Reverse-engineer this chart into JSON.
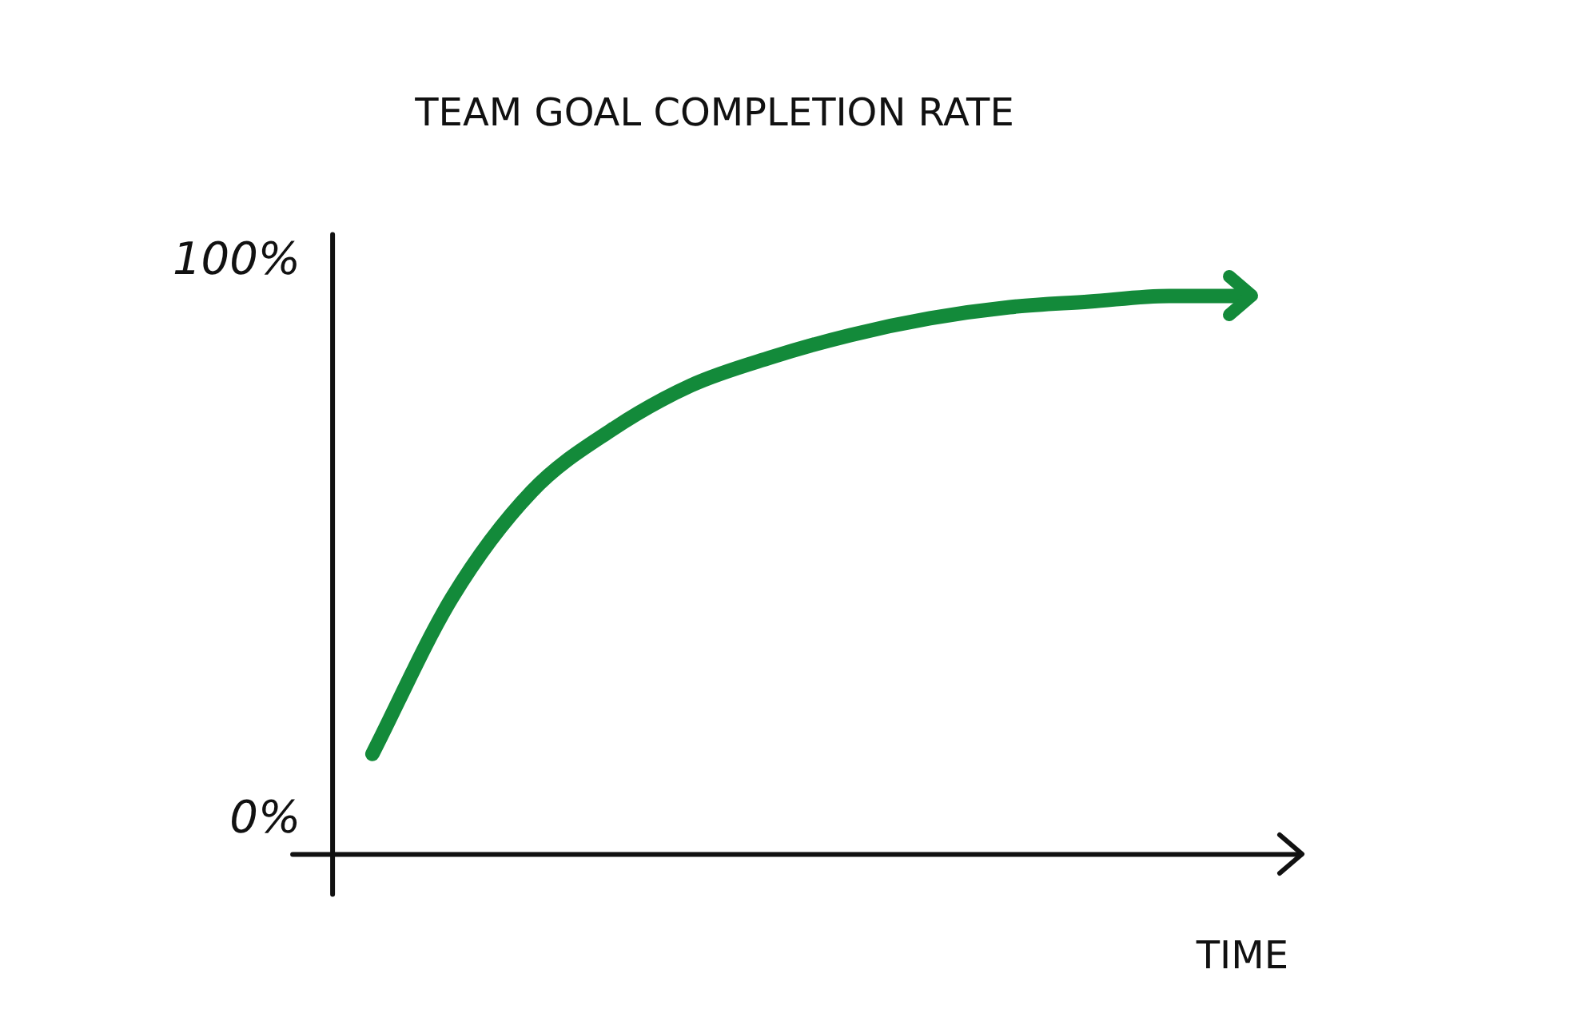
{
  "chart_data": {
    "type": "line",
    "title": "TEAM GOAL COMPLETION RATE",
    "xlabel": "TIME",
    "categories": [
      null,
      null,
      null,
      null,
      null,
      null,
      null,
      null,
      null,
      null,
      null,
      null
    ],
    "series": [
      {
        "color": "#138a3a",
        "values": [
          12,
          40,
          59,
          70,
          78,
          83,
          87,
          90,
          92,
          93,
          94,
          94
        ]
      }
    ],
    "ylim": [
      -6,
      105
    ],
    "yticks": [
      {
        "value": 0,
        "label": "0%"
      },
      {
        "value": 100,
        "label": "100%"
      }
    ],
    "marker": "none",
    "line_style": "solid"
  }
}
